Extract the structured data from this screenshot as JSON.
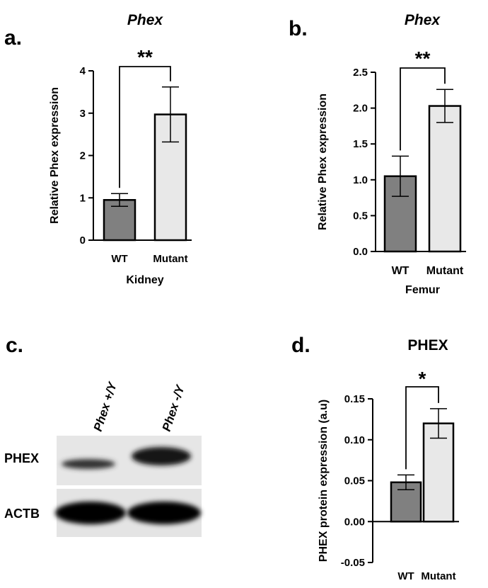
{
  "panels": {
    "a": {
      "label": "a.",
      "title": "Phex"
    },
    "b": {
      "label": "b.",
      "title": "Phex"
    },
    "c": {
      "label": "c."
    },
    "d": {
      "label": "d.",
      "title": "PHEX"
    }
  },
  "chart_data": [
    {
      "id": "a",
      "type": "bar",
      "title": "Phex",
      "categories": [
        "WT",
        "Mutant"
      ],
      "values": [
        0.95,
        2.97
      ],
      "error": [
        0.15,
        0.65
      ],
      "xlabel": "Kidney",
      "ylabel": "Relative Phex expression",
      "ylim": [
        0,
        4
      ],
      "yticks": [
        "0",
        "1",
        "2",
        "3",
        "4"
      ],
      "significance": "**",
      "bar_colors": [
        "#808080",
        "#e8e8e8"
      ],
      "grid": false
    },
    {
      "id": "b",
      "type": "bar",
      "title": "Phex",
      "categories": [
        "WT",
        "Mutant"
      ],
      "values": [
        1.05,
        2.03
      ],
      "error": [
        0.28,
        0.23
      ],
      "xlabel": "Femur",
      "ylabel": "Relative Phex expression",
      "ylim": [
        0,
        2.5
      ],
      "yticks": [
        "0.0",
        "0.5",
        "1.0",
        "1.5",
        "2.0",
        "2.5"
      ],
      "significance": "**",
      "bar_colors": [
        "#808080",
        "#e8e8e8"
      ],
      "grid": false
    },
    {
      "id": "d",
      "type": "bar",
      "title": "PHEX",
      "categories": [
        "WT",
        "Mutant"
      ],
      "values": [
        0.048,
        0.12
      ],
      "error": [
        0.009,
        0.018
      ],
      "xlabel": "",
      "ylabel": "PHEX protein expression (a.u)",
      "ylim": [
        -0.05,
        0.15
      ],
      "yticks": [
        "-0.05",
        "0.00",
        "0.05",
        "0.10",
        "0.15"
      ],
      "significance": "*",
      "bar_colors": [
        "#808080",
        "#e8e8e8"
      ],
      "grid": false
    }
  ],
  "blot": {
    "lanes": [
      "Phex +/Y",
      "Phex -/Y"
    ],
    "rows": [
      {
        "label": "PHEX",
        "intensity": [
          0.55,
          0.9
        ]
      },
      {
        "label": "ACTB",
        "intensity": [
          0.95,
          0.95
        ]
      }
    ]
  }
}
